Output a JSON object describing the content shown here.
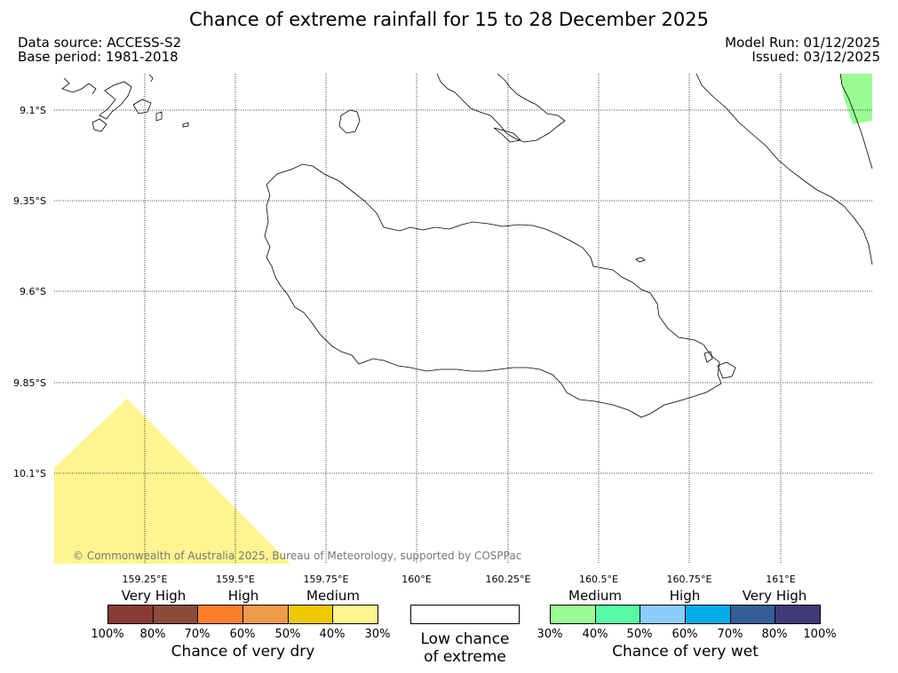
{
  "title": "Chance of extreme rainfall for 15 to 28 December 2025",
  "header": {
    "data_source": "Data source: ACCESS-S2",
    "base_period": "Base period: 1981-2018",
    "model_run": "Model Run: 01/12/2025",
    "issued": "Issued: 03/12/2025"
  },
  "map": {
    "lat_labels": [
      "9.1°S",
      "9.35°S",
      "9.6°S",
      "9.85°S",
      "10.1°S"
    ],
    "lon_labels": [
      "159.25°E",
      "159.5°E",
      "159.75°E",
      "160°E",
      "160.25°E",
      "160.5°E",
      "160.75°E",
      "161°E"
    ],
    "copyright": "© Commonwealth of Australia 2025, Bureau of Meteorology, supported by COSPPac",
    "regions": [
      {
        "category": "very-dry-30-40",
        "color": "#fdf590"
      },
      {
        "category": "very-wet-30-40",
        "color": "#9bfc96"
      }
    ]
  },
  "legend": {
    "dry": {
      "categories": [
        "Very High",
        "High",
        "Medium"
      ],
      "colors": [
        "#8a3a32",
        "#8b4c3c",
        "#fd7f28",
        "#ee9b4a",
        "#f0c800",
        "#fdf590"
      ],
      "ticks": [
        "100%",
        "80%",
        "70%",
        "60%",
        "50%",
        "40%",
        "30%"
      ],
      "caption": "Chance of very dry"
    },
    "low": {
      "caption_line1": "Low chance",
      "caption_line2": "of extreme"
    },
    "wet": {
      "categories": [
        "Medium",
        "High",
        "Very High"
      ],
      "colors": [
        "#9bfc96",
        "#55fca5",
        "#8accfa",
        "#00aeea",
        "#355e99",
        "#3f3a78"
      ],
      "ticks": [
        "30%",
        "40%",
        "50%",
        "60%",
        "70%",
        "80%",
        "100%"
      ],
      "caption": "Chance of very wet"
    }
  }
}
